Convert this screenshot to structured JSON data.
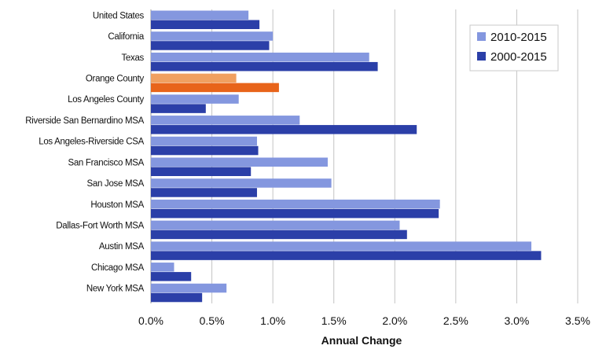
{
  "chart_data": {
    "type": "bar",
    "orientation": "horizontal",
    "categories": [
      "United States",
      "California",
      "Texas",
      "Orange County",
      "Los Angeles County",
      "Riverside San Bernardino MSA",
      "Los Angeles-Riverside CSA",
      "San Francisco MSA",
      "San Jose MSA",
      "Houston MSA",
      "Dallas-Fort Worth MSA",
      "Austin MSA",
      "Chicago MSA",
      "New York MSA"
    ],
    "series": [
      {
        "name": "2010-2015",
        "color": "#8497df",
        "values": [
          0.8,
          1.0,
          1.79,
          0.7,
          0.72,
          1.22,
          0.87,
          1.45,
          1.48,
          2.37,
          2.04,
          3.12,
          0.19,
          0.62
        ]
      },
      {
        "name": "2000-2015",
        "color": "#2b3fa8",
        "values": [
          0.89,
          0.97,
          1.86,
          1.05,
          0.45,
          2.18,
          0.88,
          0.82,
          0.87,
          2.36,
          2.1,
          3.2,
          0.33,
          0.42
        ]
      }
    ],
    "highlight": {
      "category": "Orange County",
      "colors": [
        "#f0a060",
        "#e8641a"
      ]
    },
    "xlabel": "Annual Change",
    "ylabel": "",
    "title": "",
    "xlim": [
      0,
      3.5
    ],
    "xticks": [
      "0.0%",
      "0.5%",
      "1.0%",
      "1.5%",
      "2.0%",
      "2.5%",
      "3.0%",
      "3.5%"
    ],
    "grid": "vertical",
    "legend_position": "top-right"
  }
}
